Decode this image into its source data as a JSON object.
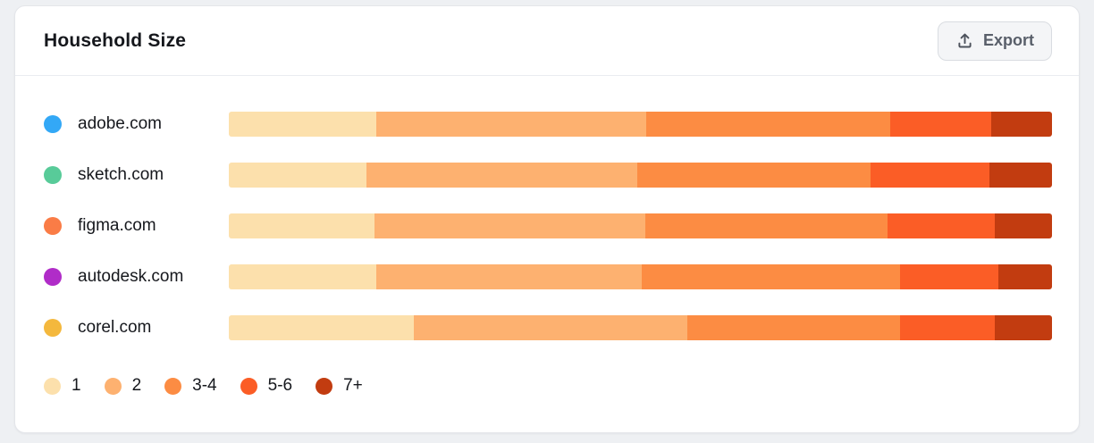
{
  "card": {
    "title": "Household Size",
    "export_label": "Export"
  },
  "colors": {
    "page_background": "#eef0f3",
    "card_background": "#ffffff",
    "card_border": "#e4e6ea",
    "header_divider": "#eaecf0",
    "export_text": "#595f6a",
    "label_text": "#16181d"
  },
  "chart_data": {
    "type": "bar",
    "stacked": true,
    "orientation": "horizontal",
    "unit": "%",
    "title": "Household Size",
    "categories": [
      "1",
      "2",
      "3-4",
      "5-6",
      "7+"
    ],
    "category_colors": [
      "#fce0ac",
      "#fdb170",
      "#fc8c43",
      "#fb5d26",
      "#c23c10"
    ],
    "rows": [
      {
        "label": "adobe.com",
        "dot_color": "#33a8f6",
        "values": [
          17.9,
          32.8,
          29.6,
          12.3,
          7.4
        ]
      },
      {
        "label": "sketch.com",
        "dot_color": "#58cb99",
        "values": [
          16.7,
          32.9,
          28.4,
          14.4,
          7.6
        ]
      },
      {
        "label": "figma.com",
        "dot_color": "#fa7c46",
        "values": [
          17.7,
          32.9,
          29.4,
          13.0,
          7.0
        ]
      },
      {
        "label": "autodesk.com",
        "dot_color": "#b02cc8",
        "values": [
          17.9,
          32.3,
          31.3,
          12.0,
          6.5
        ]
      },
      {
        "label": "corel.com",
        "dot_color": "#f4b83d",
        "values": [
          22.5,
          33.2,
          25.8,
          11.5,
          7.0
        ]
      }
    ],
    "legend": [
      {
        "label": "1",
        "color": "#fce0ac"
      },
      {
        "label": "2",
        "color": "#fdb170"
      },
      {
        "label": "3-4",
        "color": "#fc8c43"
      },
      {
        "label": "5-6",
        "color": "#fb5d26"
      },
      {
        "label": "7+",
        "color": "#c23c10"
      }
    ],
    "legend_position": "bottom",
    "xlim": [
      0,
      100
    ],
    "grid": false
  }
}
